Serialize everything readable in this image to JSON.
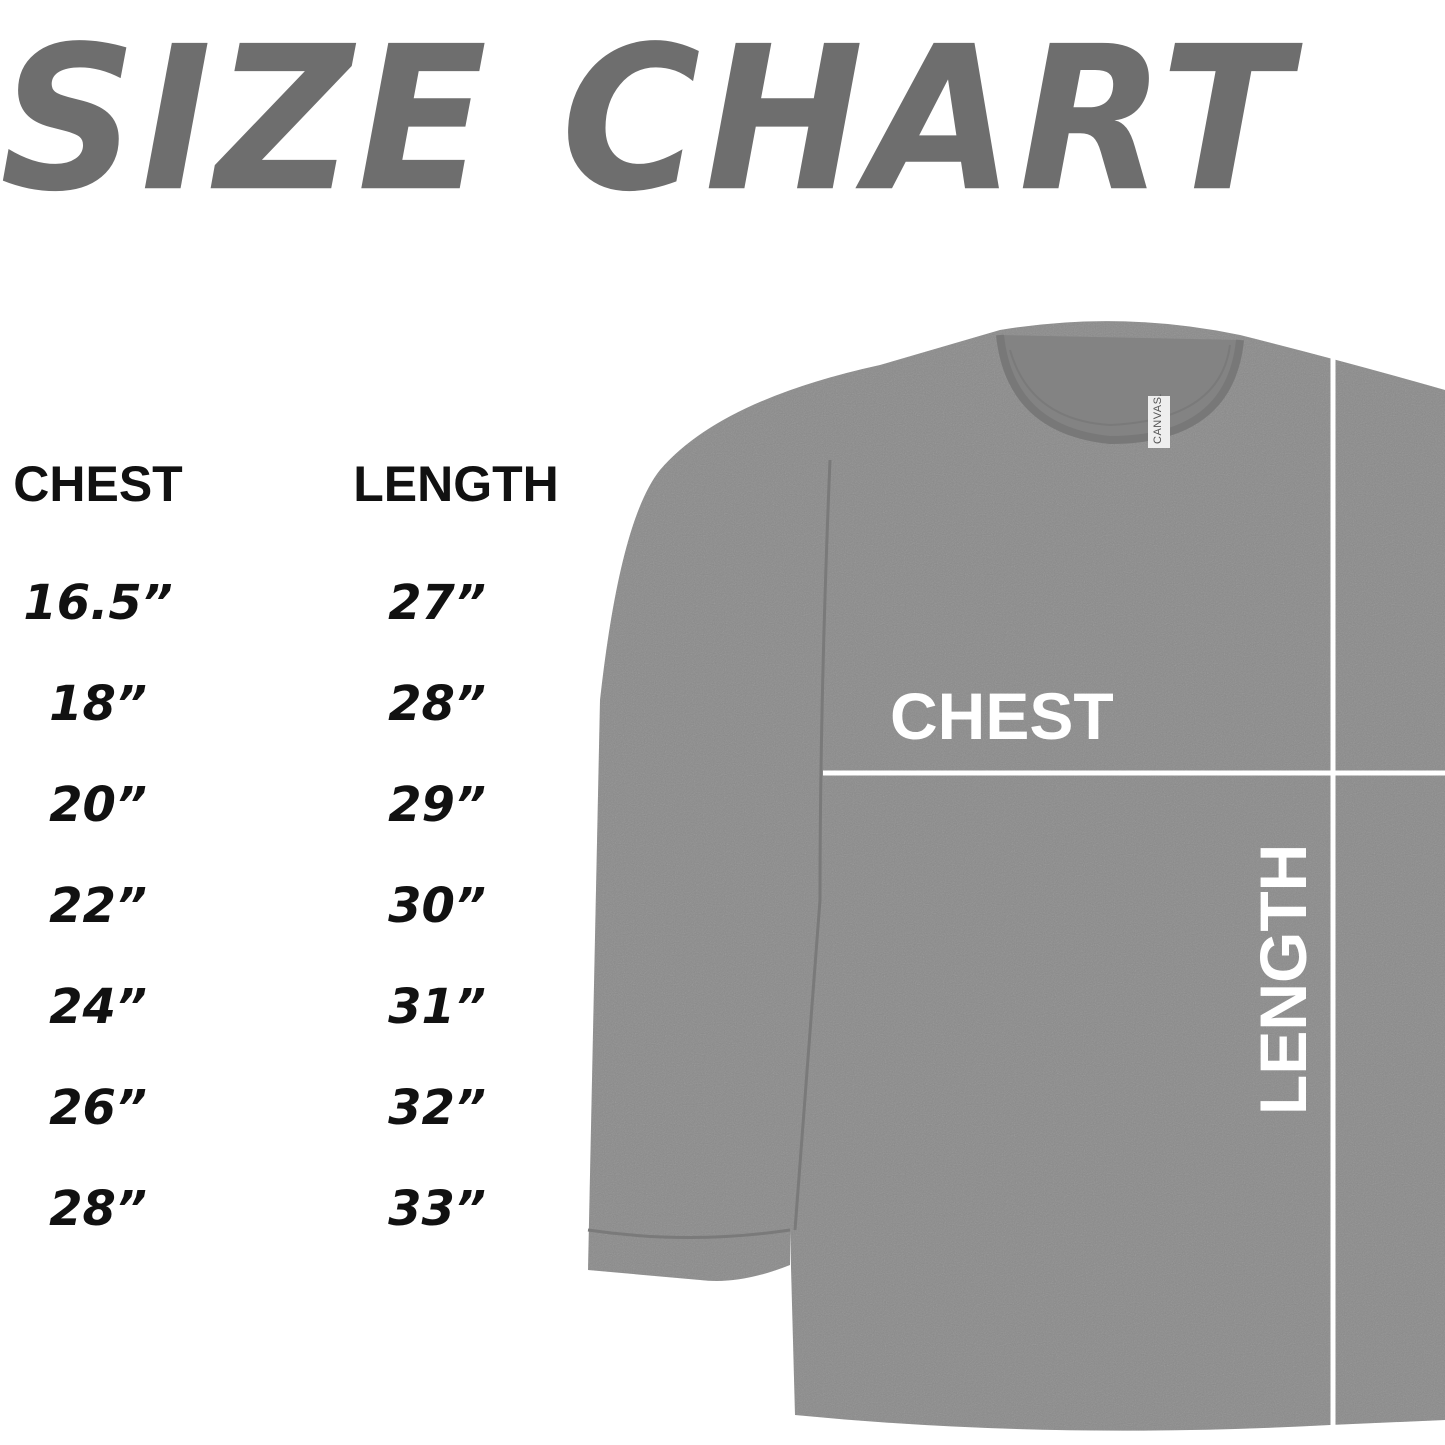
{
  "title": "SIZE CHART",
  "columns": {
    "chest": "CHEST",
    "length": "LENGTH"
  },
  "rows": [
    {
      "chest": "16.5”",
      "length": "27”"
    },
    {
      "chest": "18”",
      "length": "28”"
    },
    {
      "chest": "20”",
      "length": "29”"
    },
    {
      "chest": "22”",
      "length": "30”"
    },
    {
      "chest": "24”",
      "length": "31”"
    },
    {
      "chest": "26”",
      "length": "32”"
    },
    {
      "chest": "28”",
      "length": "33”"
    }
  ],
  "shirt": {
    "chest_label": "CHEST",
    "length_label": "LENGTH",
    "tag_text": "CANVAS.",
    "color": "#8a8a8a"
  },
  "colors": {
    "title": "#6e6e6e",
    "text": "#111111",
    "lines": "#ffffff"
  }
}
